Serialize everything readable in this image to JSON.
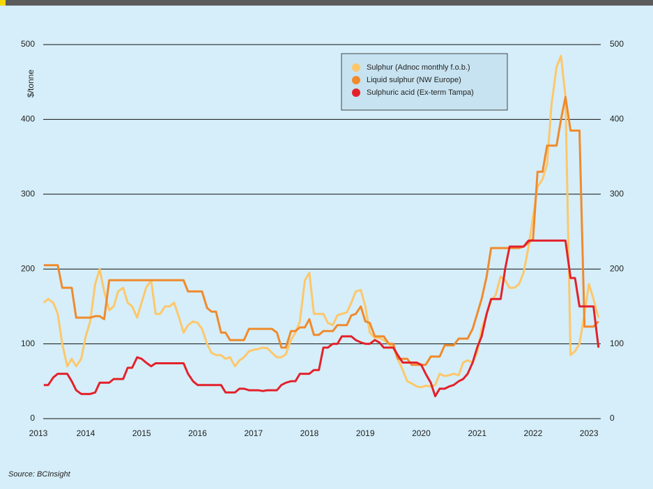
{
  "chart_data": {
    "type": "line",
    "y_label": "$/tonne",
    "source": "Source: BCInsight",
    "xlim": [
      2013.24,
      2023.21
    ],
    "xticks": [
      2013,
      2014,
      2015,
      2016,
      2017,
      2018,
      2019,
      2020,
      2021,
      2022,
      2023
    ],
    "ylim": [
      0,
      500
    ],
    "yticks": [
      0,
      100,
      200,
      300,
      400,
      500
    ],
    "y2lim": [
      0,
      500
    ],
    "y2ticks": [
      0,
      100,
      200,
      300,
      400,
      500
    ],
    "grid": true,
    "legend": "top-right",
    "x": [
      2013.25,
      2013.33,
      2013.42,
      2013.5,
      2013.58,
      2013.67,
      2013.75,
      2013.83,
      2013.92,
      2014,
      2014.08,
      2014.17,
      2014.25,
      2014.33,
      2014.42,
      2014.5,
      2014.58,
      2014.67,
      2014.75,
      2014.83,
      2014.92,
      2015,
      2015.08,
      2015.17,
      2015.25,
      2015.33,
      2015.42,
      2015.5,
      2015.58,
      2015.67,
      2015.75,
      2015.83,
      2015.92,
      2016,
      2016.08,
      2016.17,
      2016.25,
      2016.33,
      2016.42,
      2016.5,
      2016.58,
      2016.67,
      2016.75,
      2016.83,
      2016.92,
      2017,
      2017.08,
      2017.17,
      2017.25,
      2017.33,
      2017.42,
      2017.5,
      2017.58,
      2017.67,
      2017.75,
      2017.83,
      2017.92,
      2018,
      2018.08,
      2018.17,
      2018.25,
      2018.33,
      2018.42,
      2018.5,
      2018.58,
      2018.67,
      2018.75,
      2018.83,
      2018.92,
      2019,
      2019.08,
      2019.17,
      2019.25,
      2019.33,
      2019.42,
      2019.5,
      2019.58,
      2019.67,
      2019.75,
      2019.83,
      2019.92,
      2020,
      2020.08,
      2020.17,
      2020.25,
      2020.33,
      2020.42,
      2020.5,
      2020.58,
      2020.67,
      2020.75,
      2020.83,
      2020.92,
      2021,
      2021.08,
      2021.17,
      2021.25,
      2021.33,
      2021.42,
      2021.5,
      2021.58,
      2021.67,
      2021.75,
      2021.83,
      2021.92,
      2022,
      2022.08,
      2022.17,
      2022.25,
      2022.33,
      2022.42,
      2022.5,
      2022.58,
      2022.67,
      2022.75,
      2022.83,
      2022.92,
      2023,
      2023.08,
      2023.17
    ],
    "series": [
      {
        "name": "Sulphur (Adnoc monthly f.o.b.)",
        "color": "#fdc76a",
        "values": [
          155,
          160,
          155,
          140,
          100,
          70,
          80,
          70,
          80,
          110,
          130,
          180,
          200,
          170,
          145,
          150,
          170,
          175,
          155,
          150,
          135,
          155,
          175,
          185,
          140,
          140,
          150,
          150,
          155,
          135,
          115,
          125,
          130,
          128,
          120,
          100,
          88,
          85,
          85,
          80,
          82,
          70,
          78,
          82,
          90,
          92,
          93,
          95,
          94,
          88,
          82,
          82,
          86,
          105,
          115,
          130,
          185,
          195,
          140,
          140,
          140,
          128,
          125,
          138,
          140,
          142,
          155,
          170,
          172,
          150,
          115,
          108,
          108,
          105,
          100,
          95,
          80,
          65,
          50,
          47,
          43,
          42,
          44,
          43,
          45,
          60,
          57,
          58,
          60,
          58,
          75,
          78,
          75,
          88,
          120,
          140,
          158,
          165,
          190,
          185,
          175,
          175,
          180,
          195,
          230,
          270,
          310,
          320,
          340,
          420,
          470,
          485,
          430,
          85,
          90,
          100,
          140,
          180,
          160,
          135
        ]
      },
      {
        "name": "Liquid sulphur (NW Europe)",
        "color": "#f08a2c",
        "values": [
          205,
          205,
          205,
          205,
          175,
          175,
          175,
          135,
          135,
          135,
          135,
          137,
          137,
          133,
          185,
          185,
          185,
          185,
          185,
          185,
          185,
          185,
          185,
          185,
          185,
          185,
          185,
          185,
          185,
          185,
          185,
          170,
          170,
          170,
          170,
          148,
          143,
          143,
          115,
          115,
          105,
          105,
          105,
          105,
          120,
          120,
          120,
          120,
          120,
          120,
          115,
          95,
          95,
          117,
          117,
          122,
          122,
          133,
          112,
          112,
          117,
          117,
          117,
          125,
          125,
          125,
          138,
          140,
          150,
          130,
          128,
          110,
          110,
          110,
          100,
          100,
          80,
          80,
          80,
          72,
          72,
          72,
          72,
          83,
          83,
          83,
          98,
          98,
          98,
          107,
          107,
          107,
          120,
          140,
          160,
          190,
          228,
          228,
          228,
          228,
          228,
          228,
          228,
          230,
          235,
          240,
          330,
          330,
          365,
          365,
          365,
          400,
          430,
          385,
          385,
          385,
          123,
          123,
          123,
          130
        ]
      },
      {
        "name": "Sulphuric acid (Ex-term Tampa)",
        "color": "#e3212a",
        "values": [
          45,
          45,
          55,
          60,
          60,
          60,
          50,
          38,
          33,
          33,
          33,
          35,
          48,
          48,
          48,
          53,
          53,
          53,
          68,
          68,
          82,
          80,
          75,
          70,
          74,
          74,
          74,
          74,
          74,
          74,
          74,
          60,
          50,
          45,
          45,
          45,
          45,
          45,
          45,
          35,
          35,
          35,
          40,
          40,
          38,
          38,
          38,
          37,
          38,
          38,
          38,
          45,
          48,
          50,
          50,
          60,
          60,
          60,
          65,
          65,
          95,
          95,
          100,
          100,
          110,
          110,
          110,
          105,
          102,
          100,
          100,
          105,
          102,
          95,
          95,
          95,
          85,
          75,
          75,
          75,
          75,
          72,
          60,
          48,
          30,
          40,
          40,
          43,
          45,
          50,
          53,
          60,
          75,
          95,
          110,
          140,
          160,
          160,
          160,
          200,
          230,
          230,
          230,
          230,
          238,
          238,
          238,
          238,
          238,
          238,
          238,
          238,
          238,
          188,
          188,
          150,
          150,
          150,
          150,
          95
        ]
      }
    ]
  }
}
